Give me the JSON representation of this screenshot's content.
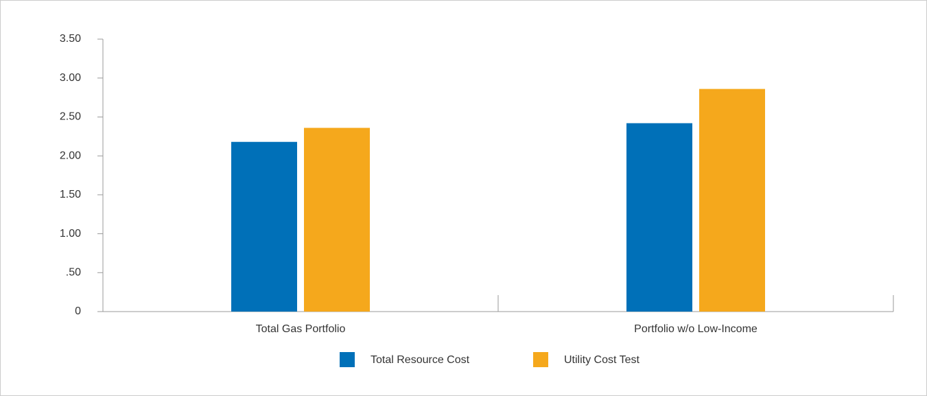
{
  "chart_data": {
    "type": "bar",
    "categories": [
      "Total Gas Portfolio",
      "Portfolio w/o Low-Income"
    ],
    "series": [
      {
        "name": "Total Resource Cost",
        "color": "#0070b8",
        "values": [
          2.18,
          2.42
        ]
      },
      {
        "name": "Utility Cost Test",
        "color": "#f5a81c",
        "values": [
          2.36,
          2.86
        ]
      }
    ],
    "ylim": [
      0,
      3.5
    ],
    "yticks": [
      0,
      {
        "value": 0.5,
        "label": ".50"
      },
      {
        "value": 1,
        "label": "1.00"
      },
      {
        "value": 1.5,
        "label": "1.50"
      },
      {
        "value": 2,
        "label": "2.00"
      },
      {
        "value": 2.5,
        "label": "2.50"
      },
      {
        "value": 3,
        "label": "3.00"
      },
      {
        "value": 3.5,
        "label": "3.50"
      }
    ],
    "legend": "bottom"
  }
}
